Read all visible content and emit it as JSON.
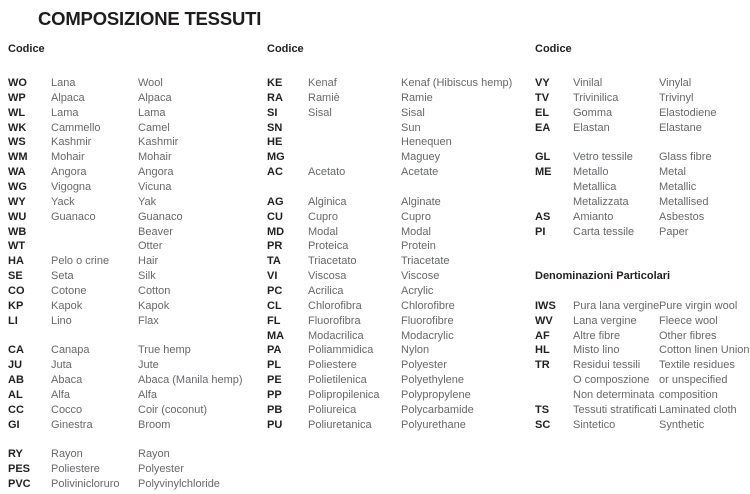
{
  "title": "COMPOSIZIONE TESSUTI",
  "colors": {
    "heading": "#231f20",
    "code_text": "#231f20",
    "body_text": "#67686b",
    "background": "#ffffff"
  },
  "columns": [
    {
      "header": "Codice",
      "rows": [
        {
          "code": "WO",
          "it": "Lana",
          "en": "Wool"
        },
        {
          "code": "WP",
          "it": "Alpaca",
          "en": "Alpaca"
        },
        {
          "code": "WL",
          "it": "Lama",
          "en": "Lama"
        },
        {
          "code": "WK",
          "it": "Cammello",
          "en": "Camel"
        },
        {
          "code": "WS",
          "it": "Kashmir",
          "en": "Kashmir"
        },
        {
          "code": "WM",
          "it": "Mohair",
          "en": "Mohair"
        },
        {
          "code": "WA",
          "it": "Angora",
          "en": "Angora"
        },
        {
          "code": "WG",
          "it": "Vigogna",
          "en": "Vicuna"
        },
        {
          "code": "WY",
          "it": "Yack",
          "en": "Yak"
        },
        {
          "code": "WU",
          "it": "Guanaco",
          "en": "Guanaco"
        },
        {
          "code": "WB",
          "it": "",
          "en": "Beaver"
        },
        {
          "code": "WT",
          "it": "",
          "en": "Otter"
        },
        {
          "code": "HA",
          "it": "Pelo o crine",
          "en": "Hair"
        },
        {
          "code": "SE",
          "it": "Seta",
          "en": "Silk"
        },
        {
          "code": "CO",
          "it": "Cotone",
          "en": "Cotton"
        },
        {
          "code": "KP",
          "it": "Kapok",
          "en": "Kapok"
        },
        {
          "code": "LI",
          "it": "Lino",
          "en": "Flax"
        },
        {},
        {
          "code": "CA",
          "it": "Canapa",
          "en": "True hemp"
        },
        {
          "code": "JU",
          "it": "Juta",
          "en": "Jute"
        },
        {
          "code": "AB",
          "it": "Abaca",
          "en": "Abaca (Manila hemp)"
        },
        {
          "code": "AL",
          "it": "Alfa",
          "en": "Alfa"
        },
        {
          "code": "CC",
          "it": "Cocco",
          "en": "Coir (coconut)"
        },
        {
          "code": "GI",
          "it": "Ginestra",
          "en": "Broom"
        },
        {},
        {
          "code": "RY",
          "it": "Rayon",
          "en": "Rayon"
        },
        {
          "code": "PES",
          "it": "Poliestere",
          "en": "Polyester"
        },
        {
          "code": "PVC",
          "it": "Polivinicloruro",
          "en": "Polyvinylchloride"
        }
      ]
    },
    {
      "header": "Codice",
      "rows": [
        {
          "code": "KE",
          "it": "Kenaf",
          "en": "Kenaf (Hibiscus hemp)"
        },
        {
          "code": "RA",
          "it": "Ramiè",
          "en": "Ramie"
        },
        {
          "code": "SI",
          "it": "Sisal",
          "en": "Sisal"
        },
        {
          "code": "SN",
          "it": "",
          "en": "Sun"
        },
        {
          "code": "HE",
          "it": "",
          "en": "Henequen"
        },
        {
          "code": "MG",
          "it": "",
          "en": "Maguey"
        },
        {
          "code": "AC",
          "it": "Acetato",
          "en": "Acetate"
        },
        {},
        {
          "code": "AG",
          "it": "Alginica",
          "en": "Alginate"
        },
        {
          "code": "CU",
          "it": "Cupro",
          "en": "Cupro"
        },
        {
          "code": "MD",
          "it": "Modal",
          "en": "Modal"
        },
        {
          "code": "PR",
          "it": "Proteica",
          "en": "Protein"
        },
        {
          "code": "TA",
          "it": "Triacetato",
          "en": "Triacetate"
        },
        {
          "code": "VI",
          "it": "Viscosa",
          "en": "Viscose"
        },
        {
          "code": "PC",
          "it": "Acrilica",
          "en": "Acrylic"
        },
        {
          "code": "CL",
          "it": "Chlorofibra",
          "en": "Chlorofibre"
        },
        {
          "code": "FL",
          "it": "Fluorofibra",
          "en": "Fluorofibre"
        },
        {
          "code": "MA",
          "it": "Modacrilica",
          "en": "Modacrylic"
        },
        {
          "code": "PA",
          "it": "Poliammidica",
          "en": "Nylon"
        },
        {
          "code": "PL",
          "it": "Poliestere",
          "en": "Polyester"
        },
        {
          "code": "PE",
          "it": "Polietilenica",
          "en": "Polyethylene"
        },
        {
          "code": "PP",
          "it": "Polipropilenica",
          "en": "Polypropylene"
        },
        {
          "code": "PB",
          "it": "Poliureica",
          "en": "Polycarbamide"
        },
        {
          "code": "PU",
          "it": "Poliuretanica",
          "en": "Polyurethane"
        }
      ]
    },
    {
      "header": "Codice",
      "rows": [
        {
          "code": "VY",
          "it": "Vinilal",
          "en": "Vinylal"
        },
        {
          "code": "TV",
          "it": "Trivinilica",
          "en": "Trivinyl"
        },
        {
          "code": "EL",
          "it": "Gomma",
          "en": "Elastodiene"
        },
        {
          "code": "EA",
          "it": "Elastan",
          "en": "Elastane"
        },
        {},
        {
          "code": "GL",
          "it": "Vetro tessile",
          "en": "Glass fibre"
        },
        {
          "code": "ME",
          "it": "Metallo",
          "en": "Metal"
        },
        {
          "code": "",
          "it": "Metallica",
          "en": "Metallic"
        },
        {
          "code": "",
          "it": "Metalizzata",
          "en": "Metallised"
        },
        {
          "code": "AS",
          "it": "Amianto",
          "en": "Asbestos"
        },
        {
          "code": "PI",
          "it": "Carta tessile",
          "en": "Paper"
        },
        {},
        {},
        {
          "subheader": "Denominazioni Particolari"
        },
        {},
        {
          "code": "IWS",
          "it": "Pura lana vergine",
          "en": "Pure virgin wool"
        },
        {
          "code": "WV",
          "it": "Lana vergine",
          "en": "Fleece wool"
        },
        {
          "code": "AF",
          "it": "Altre fibre",
          "en": "Other fibres"
        },
        {
          "code": "HL",
          "it": "Misto lino",
          "en": "Cotton linen Union"
        },
        {
          "code": "TR",
          "it": "Residui tessili",
          "en": "Textile residues"
        },
        {
          "code": "",
          "it": "O composzione",
          "en": "or unspecified"
        },
        {
          "code": "",
          "it": "Non determinata",
          "en": "composition"
        },
        {
          "code": "TS",
          "it": "Tessuti stratificati",
          "en": "Laminated cloth"
        },
        {
          "code": "SC",
          "it": "Sintetico",
          "en": "Synthetic"
        }
      ]
    }
  ]
}
